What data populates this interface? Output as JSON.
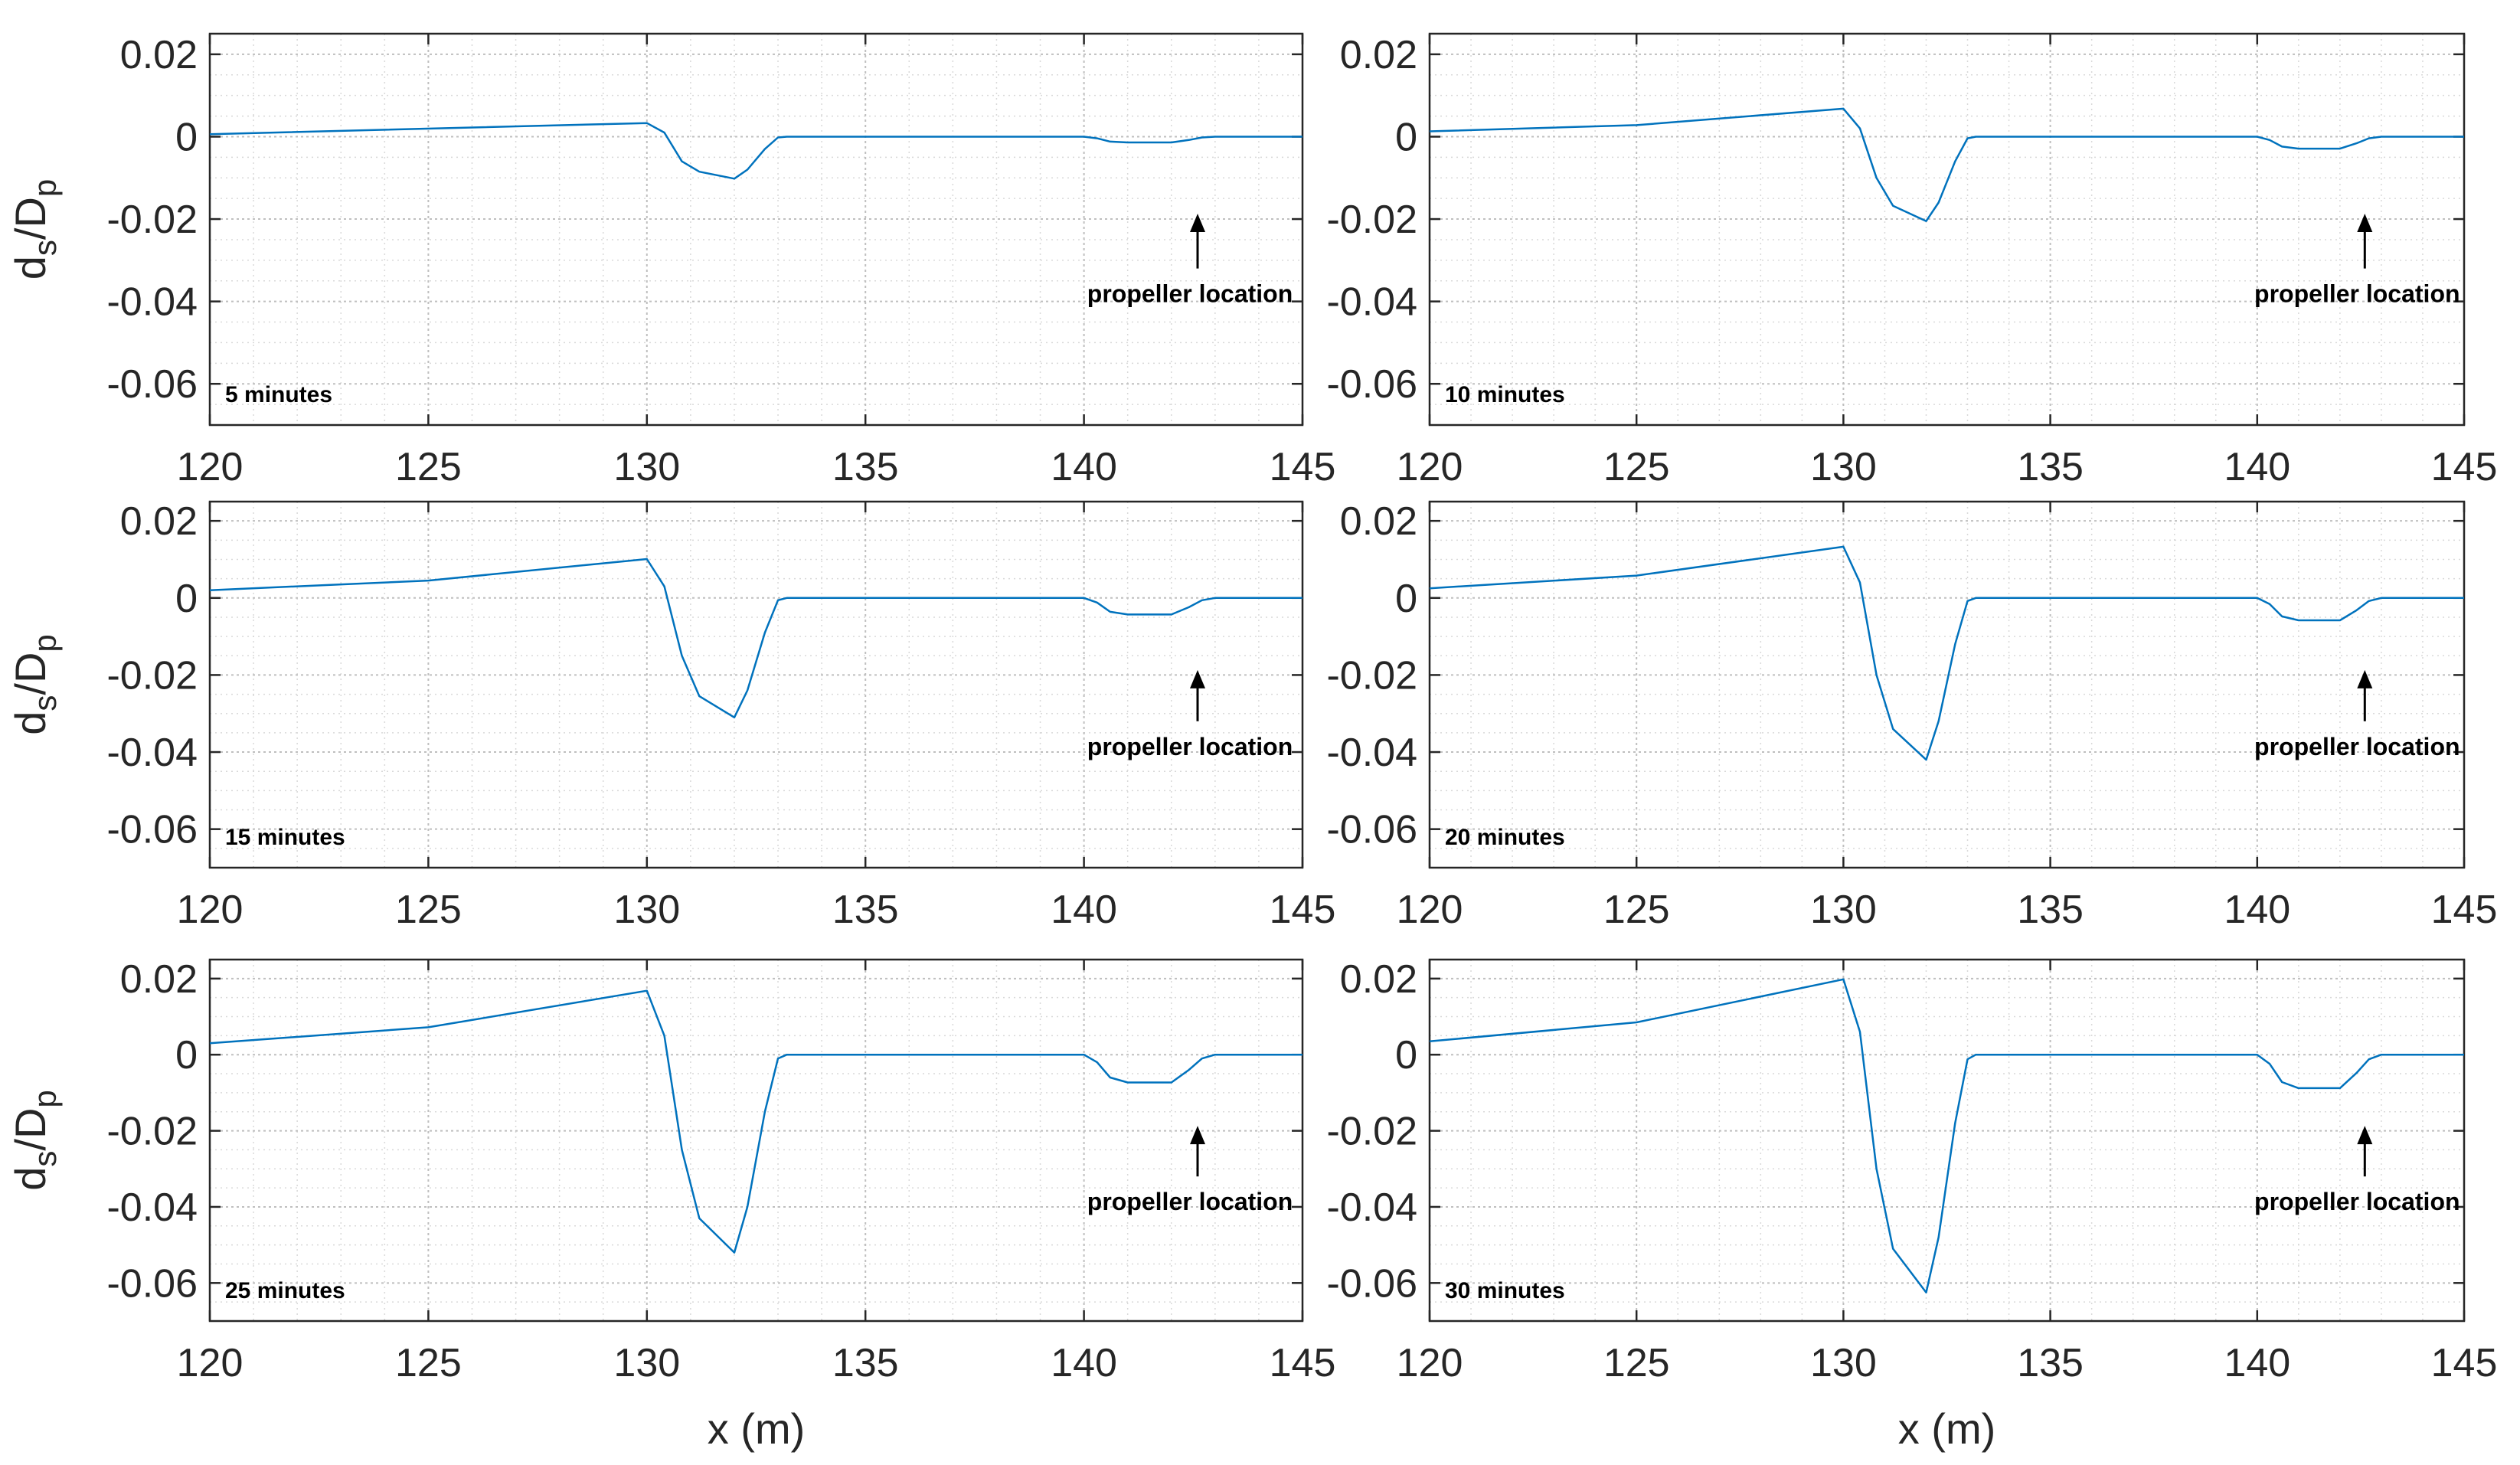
{
  "chart_data": [
    {
      "type": "line",
      "panel_label": "5 minutes",
      "annotation": "propeller location",
      "xlabel": "",
      "ylabel": {
        "main": "d",
        "sub1": "s",
        "mid": "/D",
        "sub2": "p"
      },
      "xlim": [
        120,
        145
      ],
      "ylim": [
        -0.07,
        0.025
      ],
      "xticks": [
        "120",
        "125",
        "130",
        "135",
        "140",
        "145"
      ],
      "yticks": [
        "0.02",
        "0",
        "-0.02",
        "-0.04",
        "-0.06"
      ],
      "grid": "major and minor, dotted",
      "series": [
        {
          "color": "#0072BD",
          "x": [
            120,
            130,
            130.4,
            130.8,
            131.2,
            132.0,
            132.3,
            132.7,
            133.0,
            133.2,
            140.0,
            140.3,
            140.6,
            141.0,
            142.0,
            142.4,
            142.7,
            143.0,
            145.0
          ],
          "y": [
            0.0006,
            0.0033,
            0.001,
            -0.006,
            -0.0085,
            -0.0102,
            -0.008,
            -0.003,
            -0.0002,
            0.0,
            0.0,
            -0.0004,
            -0.0012,
            -0.0014,
            -0.0014,
            -0.0008,
            -0.0002,
            0.0,
            0.0
          ]
        }
      ]
    },
    {
      "type": "line",
      "panel_label": "10 minutes",
      "annotation": "propeller location",
      "xlabel": "",
      "ylabel": {
        "main": "",
        "sub1": "",
        "mid": "",
        "sub2": ""
      },
      "xlim": [
        120,
        145
      ],
      "ylim": [
        -0.07,
        0.025
      ],
      "xticks": [
        "120",
        "125",
        "130",
        "135",
        "140",
        "145"
      ],
      "yticks": [
        "0.02",
        "0",
        "-0.02",
        "-0.04",
        "-0.06"
      ],
      "grid": "major and minor, dotted",
      "series": [
        {
          "color": "#0072BD",
          "x": [
            120,
            125,
            130,
            130.4,
            130.8,
            131.2,
            132.0,
            132.3,
            132.7,
            133.0,
            133.2,
            140.0,
            140.3,
            140.6,
            141.0,
            142.0,
            142.4,
            142.7,
            143.0,
            145.0
          ],
          "y": [
            0.0013,
            0.0028,
            0.0068,
            0.002,
            -0.01,
            -0.0168,
            -0.0205,
            -0.016,
            -0.006,
            -0.0004,
            0.0,
            0.0,
            -0.0008,
            -0.0024,
            -0.0029,
            -0.0029,
            -0.0016,
            -0.0004,
            0.0,
            0.0
          ]
        }
      ]
    },
    {
      "type": "line",
      "panel_label": "15 minutes",
      "annotation": "propeller location",
      "xlabel": "",
      "ylabel": {
        "main": "d",
        "sub1": "s",
        "mid": "/D",
        "sub2": "p"
      },
      "xlim": [
        120,
        145
      ],
      "ylim": [
        -0.07,
        0.025
      ],
      "xticks": [
        "120",
        "125",
        "130",
        "135",
        "140",
        "145"
      ],
      "yticks": [
        "0.02",
        "0",
        "-0.02",
        "-0.04",
        "-0.06"
      ],
      "grid": "major and minor, dotted",
      "series": [
        {
          "color": "#0072BD",
          "x": [
            120,
            125,
            130,
            130.4,
            130.8,
            131.2,
            132.0,
            132.3,
            132.7,
            133.0,
            133.2,
            140.0,
            140.3,
            140.6,
            141.0,
            142.0,
            142.4,
            142.7,
            143.0,
            145.0
          ],
          "y": [
            0.002,
            0.0045,
            0.0101,
            0.003,
            -0.015,
            -0.0255,
            -0.031,
            -0.024,
            -0.009,
            -0.0006,
            0.0,
            0.0,
            -0.0012,
            -0.0036,
            -0.0043,
            -0.0043,
            -0.0024,
            -0.0006,
            0.0,
            0.0
          ]
        }
      ]
    },
    {
      "type": "line",
      "panel_label": "20 minutes",
      "annotation": "propeller location",
      "xlabel": "",
      "ylabel": {
        "main": "",
        "sub1": "",
        "mid": "",
        "sub2": ""
      },
      "xlim": [
        120,
        145
      ],
      "ylim": [
        -0.07,
        0.025
      ],
      "xticks": [
        "120",
        "125",
        "130",
        "135",
        "140",
        "145"
      ],
      "yticks": [
        "0.02",
        "0",
        "-0.02",
        "-0.04",
        "-0.06"
      ],
      "grid": "major and minor, dotted",
      "series": [
        {
          "color": "#0072BD",
          "x": [
            120,
            125,
            130,
            130.4,
            130.8,
            131.2,
            132.0,
            132.3,
            132.7,
            133.0,
            133.2,
            140.0,
            140.3,
            140.6,
            141.0,
            142.0,
            142.4,
            142.7,
            143.0,
            145.0
          ],
          "y": [
            0.0025,
            0.0058,
            0.0133,
            0.004,
            -0.02,
            -0.034,
            -0.042,
            -0.032,
            -0.012,
            -0.0008,
            0.0,
            0.0,
            -0.0016,
            -0.0048,
            -0.0058,
            -0.0058,
            -0.0032,
            -0.0008,
            0.0,
            0.0
          ]
        }
      ]
    },
    {
      "type": "line",
      "panel_label": "25 minutes",
      "annotation": "propeller location",
      "xlabel": "x (m)",
      "ylabel": {
        "main": "d",
        "sub1": "s",
        "mid": "/D",
        "sub2": "p"
      },
      "xlim": [
        120,
        145
      ],
      "ylim": [
        -0.07,
        0.025
      ],
      "xticks": [
        "120",
        "125",
        "130",
        "135",
        "140",
        "145"
      ],
      "yticks": [
        "0.02",
        "0",
        "-0.02",
        "-0.04",
        "-0.06"
      ],
      "grid": "major and minor, dotted",
      "series": [
        {
          "color": "#0072BD",
          "x": [
            120,
            125,
            130,
            130.4,
            130.8,
            131.2,
            132.0,
            132.3,
            132.7,
            133.0,
            133.2,
            140.0,
            140.3,
            140.6,
            141.0,
            142.0,
            142.4,
            142.7,
            143.0,
            145.0
          ],
          "y": [
            0.003,
            0.0072,
            0.0168,
            0.005,
            -0.025,
            -0.043,
            -0.052,
            -0.04,
            -0.015,
            -0.001,
            0.0,
            0.0,
            -0.002,
            -0.006,
            -0.0073,
            -0.0073,
            -0.004,
            -0.001,
            0.0,
            0.0
          ]
        }
      ]
    },
    {
      "type": "line",
      "panel_label": "30 minutes",
      "annotation": "propeller location",
      "xlabel": "x (m)",
      "ylabel": {
        "main": "",
        "sub1": "",
        "mid": "",
        "sub2": ""
      },
      "xlim": [
        120,
        145
      ],
      "ylim": [
        -0.07,
        0.025
      ],
      "xticks": [
        "120",
        "125",
        "130",
        "135",
        "140",
        "145"
      ],
      "yticks": [
        "0.02",
        "0",
        "-0.02",
        "-0.04",
        "-0.06"
      ],
      "grid": "major and minor, dotted",
      "series": [
        {
          "color": "#0072BD",
          "x": [
            120,
            125,
            130,
            130.4,
            130.8,
            131.2,
            132.0,
            132.3,
            132.7,
            133.0,
            133.2,
            140.0,
            140.3,
            140.6,
            141.0,
            142.0,
            142.4,
            142.7,
            143.0,
            145.0
          ],
          "y": [
            0.0035,
            0.0085,
            0.0198,
            0.006,
            -0.03,
            -0.051,
            -0.0625,
            -0.048,
            -0.018,
            -0.0012,
            0.0,
            0.0,
            -0.0024,
            -0.0072,
            -0.0088,
            -0.0088,
            -0.0048,
            -0.0012,
            0.0,
            0.0
          ]
        }
      ]
    }
  ]
}
